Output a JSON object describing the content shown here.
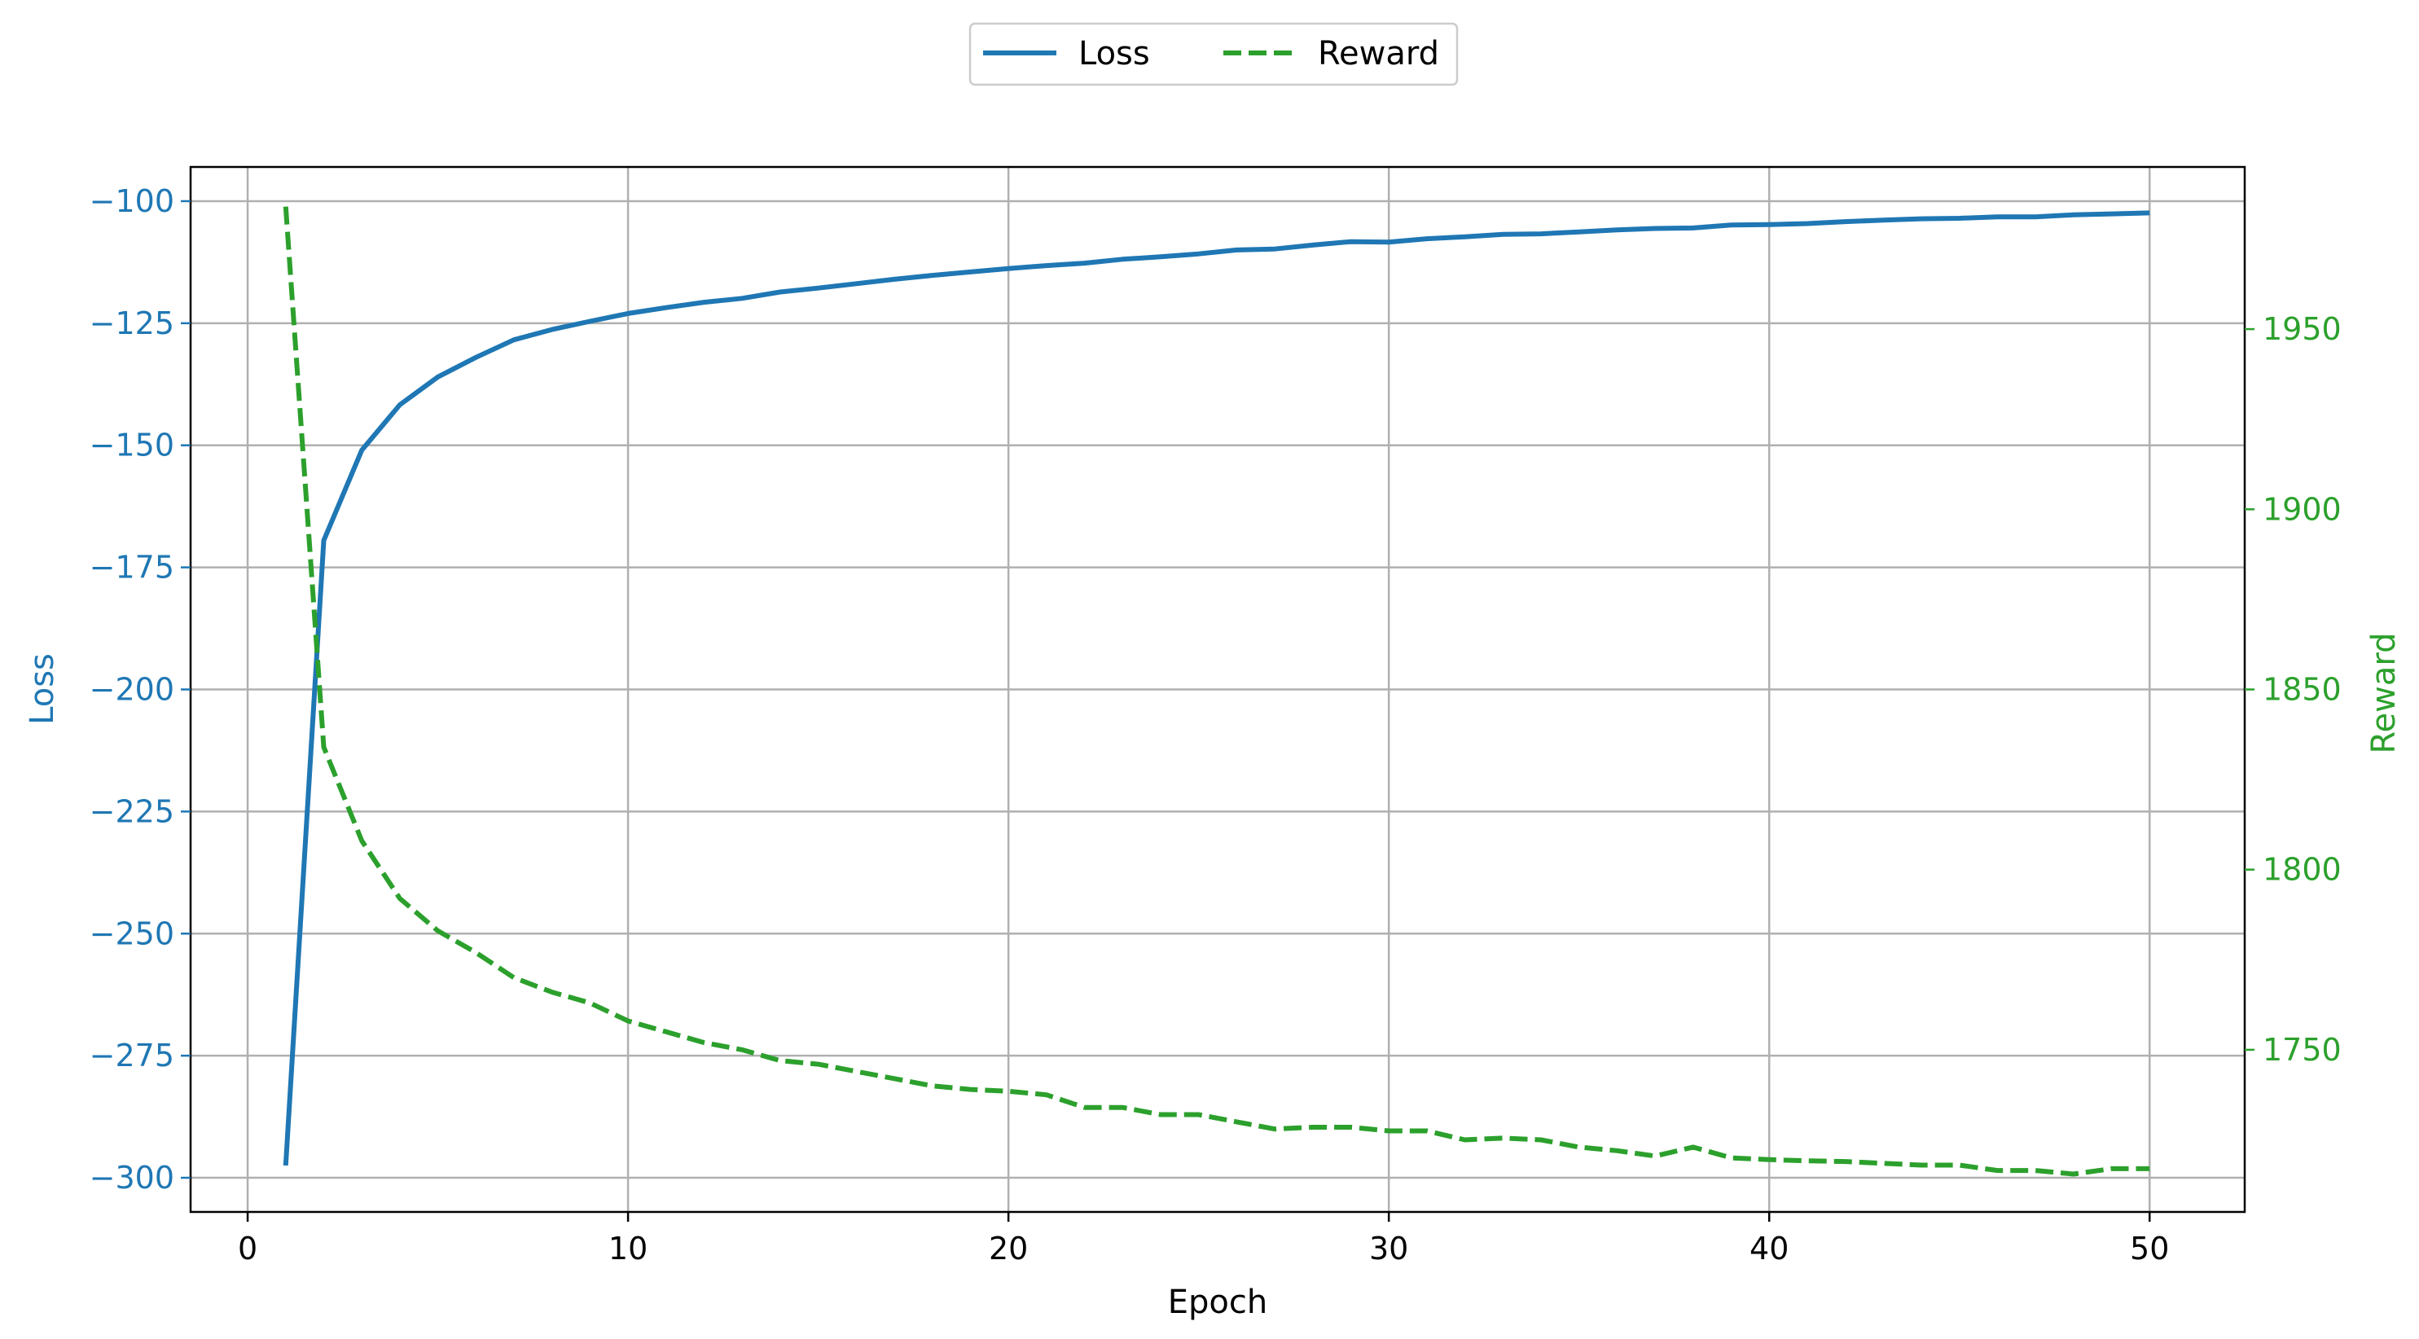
{
  "chart_data": {
    "type": "line",
    "xlabel": "Epoch",
    "ylabel_left": "Loss",
    "ylabel_right": "Reward",
    "x": [
      1,
      2,
      3,
      4,
      5,
      6,
      7,
      8,
      9,
      10,
      11,
      12,
      13,
      14,
      15,
      16,
      17,
      18,
      19,
      20,
      21,
      22,
      23,
      24,
      25,
      26,
      27,
      28,
      29,
      30,
      31,
      32,
      33,
      34,
      35,
      36,
      37,
      38,
      39,
      40,
      41,
      42,
      43,
      44,
      45,
      46,
      47,
      48,
      49,
      50
    ],
    "xlim": [
      -1.5,
      52.5
    ],
    "ylim_left": [
      -307,
      -93
    ],
    "ylim_right": [
      1705,
      1995
    ],
    "x_ticks": [
      0,
      10,
      20,
      30,
      40,
      50
    ],
    "y_ticks_left": [
      -100,
      -125,
      -150,
      -175,
      -200,
      -225,
      -250,
      -275,
      -300
    ],
    "y_ticks_right": [
      1750,
      1800,
      1850,
      1900,
      1950
    ],
    "grid": true,
    "legend_position": "top-center",
    "series": [
      {
        "name": "Loss",
        "axis": "left",
        "color": "#1f77b4",
        "style": "solid",
        "values": [
          -297.5,
          -169.5,
          -151,
          -141.7,
          -136,
          -132,
          -128.4,
          -126.3,
          -124.6,
          -123,
          -121.8,
          -120.7,
          -119.9,
          -118.6,
          -117.8,
          -116.9,
          -116,
          -115.2,
          -114.5,
          -113.8,
          -113.2,
          -112.7,
          -111.9,
          -111.4,
          -110.8,
          -110,
          -109.8,
          -109,
          -108.3,
          -108.4,
          -107.7,
          -107.3,
          -106.8,
          -106.7,
          -106.3,
          -105.9,
          -105.6,
          -105.5,
          -104.9,
          -104.8,
          -104.6,
          -104.2,
          -103.9,
          -103.6,
          -103.5,
          -103.2,
          -103.2,
          -102.8,
          -102.6,
          -102.4
        ]
      },
      {
        "name": "Reward",
        "axis": "right",
        "color": "#2ca02c",
        "style": "dashed",
        "values": [
          1984,
          1834,
          1808,
          1792,
          1783,
          1777,
          1770,
          1766,
          1763,
          1758,
          1755,
          1752,
          1750,
          1747,
          1746,
          1744,
          1742,
          1740,
          1739,
          1738.5,
          1737.5,
          1734,
          1734,
          1732,
          1732,
          1730,
          1728,
          1728.5,
          1728.5,
          1727.5,
          1727.5,
          1725,
          1725.5,
          1725,
          1723,
          1722,
          1720.5,
          1723,
          1720,
          1719.5,
          1719.2,
          1719,
          1718.5,
          1718,
          1718,
          1716.5,
          1716.5,
          1715.5,
          1717,
          1717
        ]
      }
    ]
  }
}
